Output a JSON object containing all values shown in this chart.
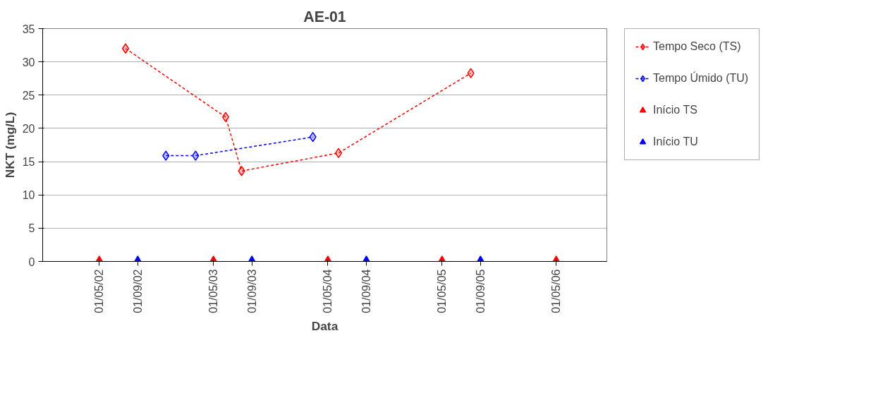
{
  "chart_data": {
    "type": "line",
    "title": "AE-01",
    "xlabel": "Data",
    "ylabel": "NKT (mg/L)",
    "xlim": [
      "2001-11-01",
      "2006-10-10"
    ],
    "ylim": [
      0,
      35
    ],
    "yticks": [
      0,
      5,
      10,
      15,
      20,
      25,
      30,
      35
    ],
    "xticks": [
      {
        "value": "2002-05-01",
        "label": "01/05/02"
      },
      {
        "value": "2002-09-01",
        "label": "01/09/02"
      },
      {
        "value": "2003-05-01",
        "label": "01/05/03"
      },
      {
        "value": "2003-09-01",
        "label": "01/09/03"
      },
      {
        "value": "2004-05-01",
        "label": "01/05/04"
      },
      {
        "value": "2004-09-01",
        "label": "01/09/04"
      },
      {
        "value": "2005-05-01",
        "label": "01/05/05"
      },
      {
        "value": "2005-09-01",
        "label": "01/09/05"
      },
      {
        "value": "2006-05-01",
        "label": "01/05/06"
      }
    ],
    "grid": "y",
    "legend": "right",
    "series": [
      {
        "name": "Tempo Seco (TS)",
        "color": "#ff0000",
        "marker": "diamond",
        "line_style": "dotted",
        "x": [
          "2002-07-24",
          "2003-06-09",
          "2003-07-30",
          "2004-06-04",
          "2005-08-01"
        ],
        "values": [
          32,
          21.7,
          13.6,
          16.3,
          28.3
        ]
      },
      {
        "name": "Tempo Úmido (TU)",
        "color": "#0000ff",
        "marker": "diamond",
        "line_style": "dotted",
        "x": [
          "2002-11-30",
          "2003-03-05",
          "2004-03-14"
        ],
        "values": [
          15.9,
          15.9,
          18.7
        ]
      },
      {
        "name": "Início TS",
        "type": "scatter",
        "color": "#ff0000",
        "marker": "triangle",
        "x": [
          "2002-05-01",
          "2003-05-01",
          "2004-05-01",
          "2005-05-01",
          "2006-05-01"
        ],
        "values": [
          0,
          0,
          0,
          0,
          0
        ]
      },
      {
        "name": "Início TU",
        "type": "scatter",
        "color": "#0000ff",
        "marker": "triangle",
        "x": [
          "2002-09-01",
          "2003-09-01",
          "2004-09-01",
          "2005-09-01"
        ],
        "values": [
          0,
          0,
          0,
          0
        ]
      }
    ]
  }
}
